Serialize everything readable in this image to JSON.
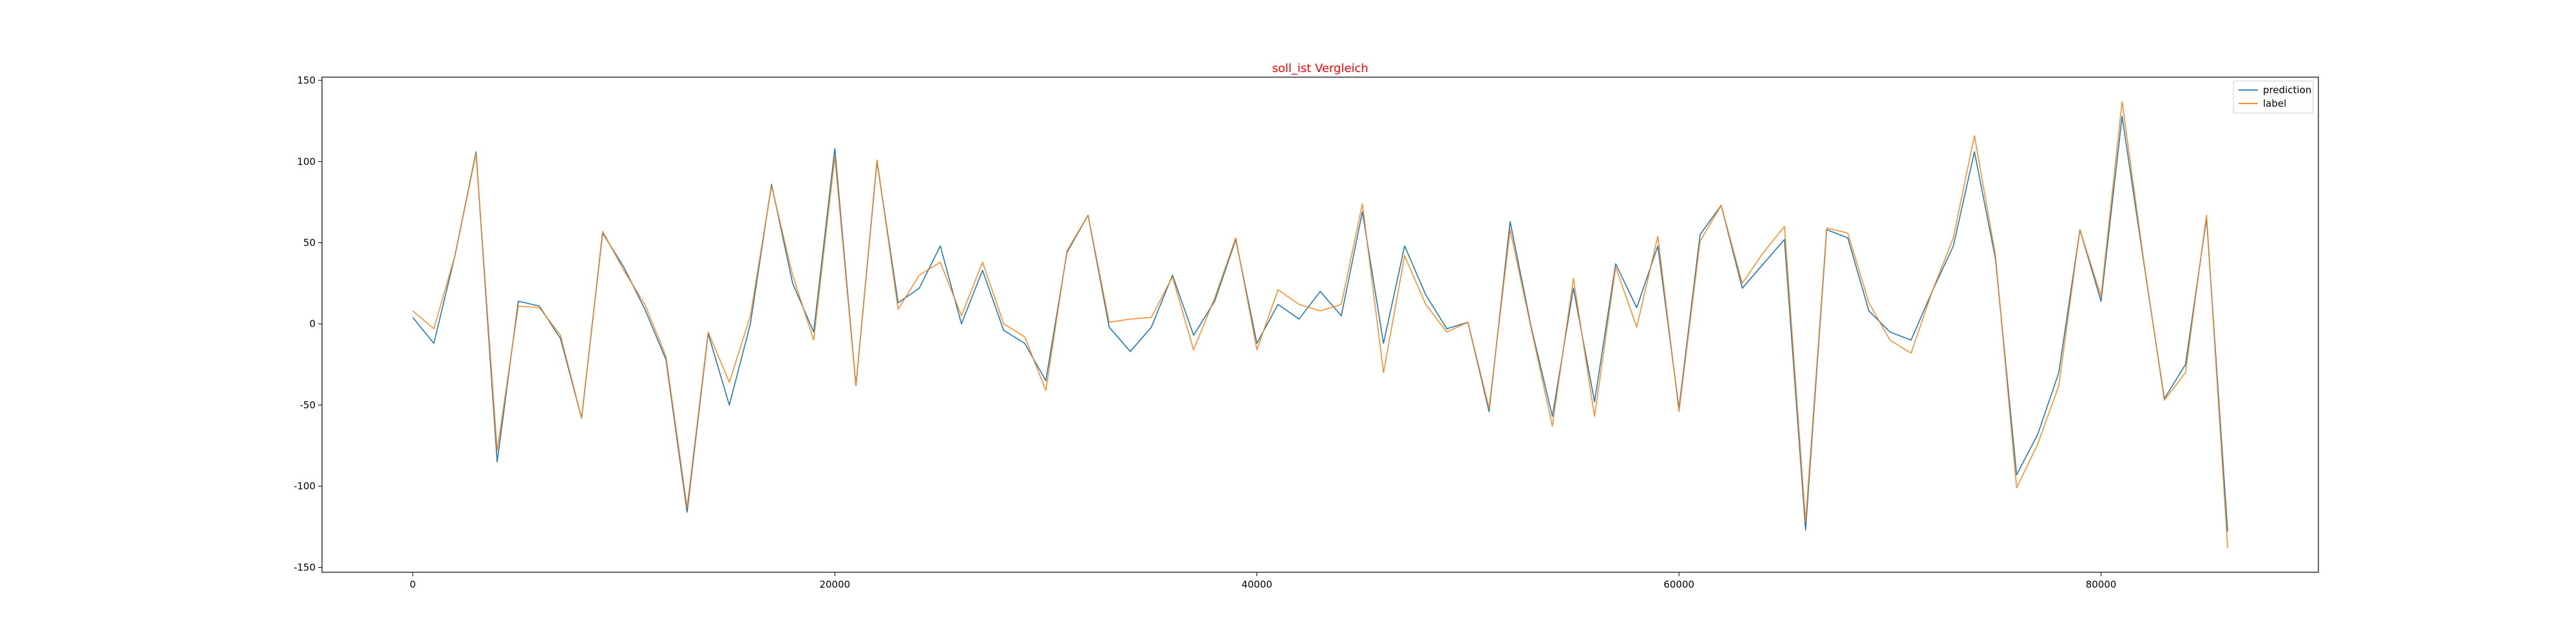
{
  "chart_data": {
    "type": "line",
    "title": "soll_ist Vergleich",
    "title_color": "#ff0000",
    "xlabel": "",
    "ylabel": "",
    "xlim": [
      -4300,
      90300
    ],
    "ylim": [
      -153,
      152
    ],
    "x_ticks": [
      0,
      20000,
      40000,
      60000,
      80000
    ],
    "y_ticks": [
      -150,
      -100,
      -50,
      0,
      50,
      100,
      150
    ],
    "grid": false,
    "legend_position": "top-right",
    "x": [
      0,
      1000,
      2000,
      3000,
      4000,
      5000,
      6000,
      7000,
      8000,
      9000,
      10000,
      11000,
      12000,
      13000,
      14000,
      15000,
      16000,
      17000,
      18000,
      19000,
      20000,
      21000,
      22000,
      23000,
      24000,
      25000,
      26000,
      27000,
      28000,
      29000,
      30000,
      31000,
      32000,
      33000,
      34000,
      35000,
      36000,
      37000,
      38000,
      39000,
      40000,
      41000,
      42000,
      43000,
      44000,
      45000,
      46000,
      47000,
      48000,
      49000,
      50000,
      51000,
      52000,
      53000,
      54000,
      55000,
      56000,
      57000,
      58000,
      59000,
      60000,
      61000,
      62000,
      63000,
      64000,
      65000,
      66000,
      67000,
      68000,
      69000,
      70000,
      71000,
      72000,
      73000,
      74000,
      75000,
      76000,
      77000,
      78000,
      79000,
      80000,
      81000,
      82000,
      83000,
      84000,
      85000,
      86000
    ],
    "series": [
      {
        "name": "prediction",
        "color": "#1f77b4",
        "values": [
          4,
          -12,
          42,
          106,
          -85,
          14,
          11,
          -9,
          -58,
          56,
          35,
          9,
          -22,
          -116,
          -6,
          -50,
          0,
          86,
          25,
          -5,
          108,
          -38,
          100,
          13,
          22,
          48,
          0,
          33,
          -4,
          -12,
          -35,
          44,
          67,
          -2,
          -17,
          -2,
          30,
          -7,
          14,
          52,
          -12,
          12,
          3,
          20,
          5,
          69,
          -12,
          48,
          18,
          -3,
          1,
          -54,
          63,
          -2,
          -57,
          22,
          -48,
          37,
          10,
          48,
          -52,
          55,
          73,
          22,
          37,
          52,
          -127,
          58,
          53,
          8,
          -5,
          -10,
          20,
          48,
          106,
          40,
          -93,
          -68,
          -30,
          58,
          14,
          128,
          40,
          -46,
          -25,
          65,
          -128
        ]
      },
      {
        "name": "label",
        "color": "#ff7f0e",
        "values": [
          8,
          -3,
          42,
          105,
          -78,
          11,
          10,
          -7,
          -58,
          57,
          33,
          12,
          -20,
          -113,
          -5,
          -36,
          5,
          85,
          30,
          -10,
          103,
          -38,
          101,
          9,
          30,
          38,
          5,
          38,
          0,
          -8,
          -41,
          45,
          67,
          1,
          3,
          4,
          29,
          -16,
          16,
          53,
          -16,
          21,
          12,
          8,
          12,
          74,
          -30,
          42,
          12,
          -5,
          1,
          -52,
          58,
          -3,
          -63,
          28,
          -57,
          35,
          -2,
          54,
          -54,
          51,
          73,
          25,
          44,
          60,
          -122,
          59,
          56,
          13,
          -10,
          -18,
          20,
          53,
          116,
          42,
          -101,
          -74,
          -38,
          58,
          17,
          137,
          41,
          -47,
          -30,
          67,
          -138
        ]
      }
    ]
  }
}
